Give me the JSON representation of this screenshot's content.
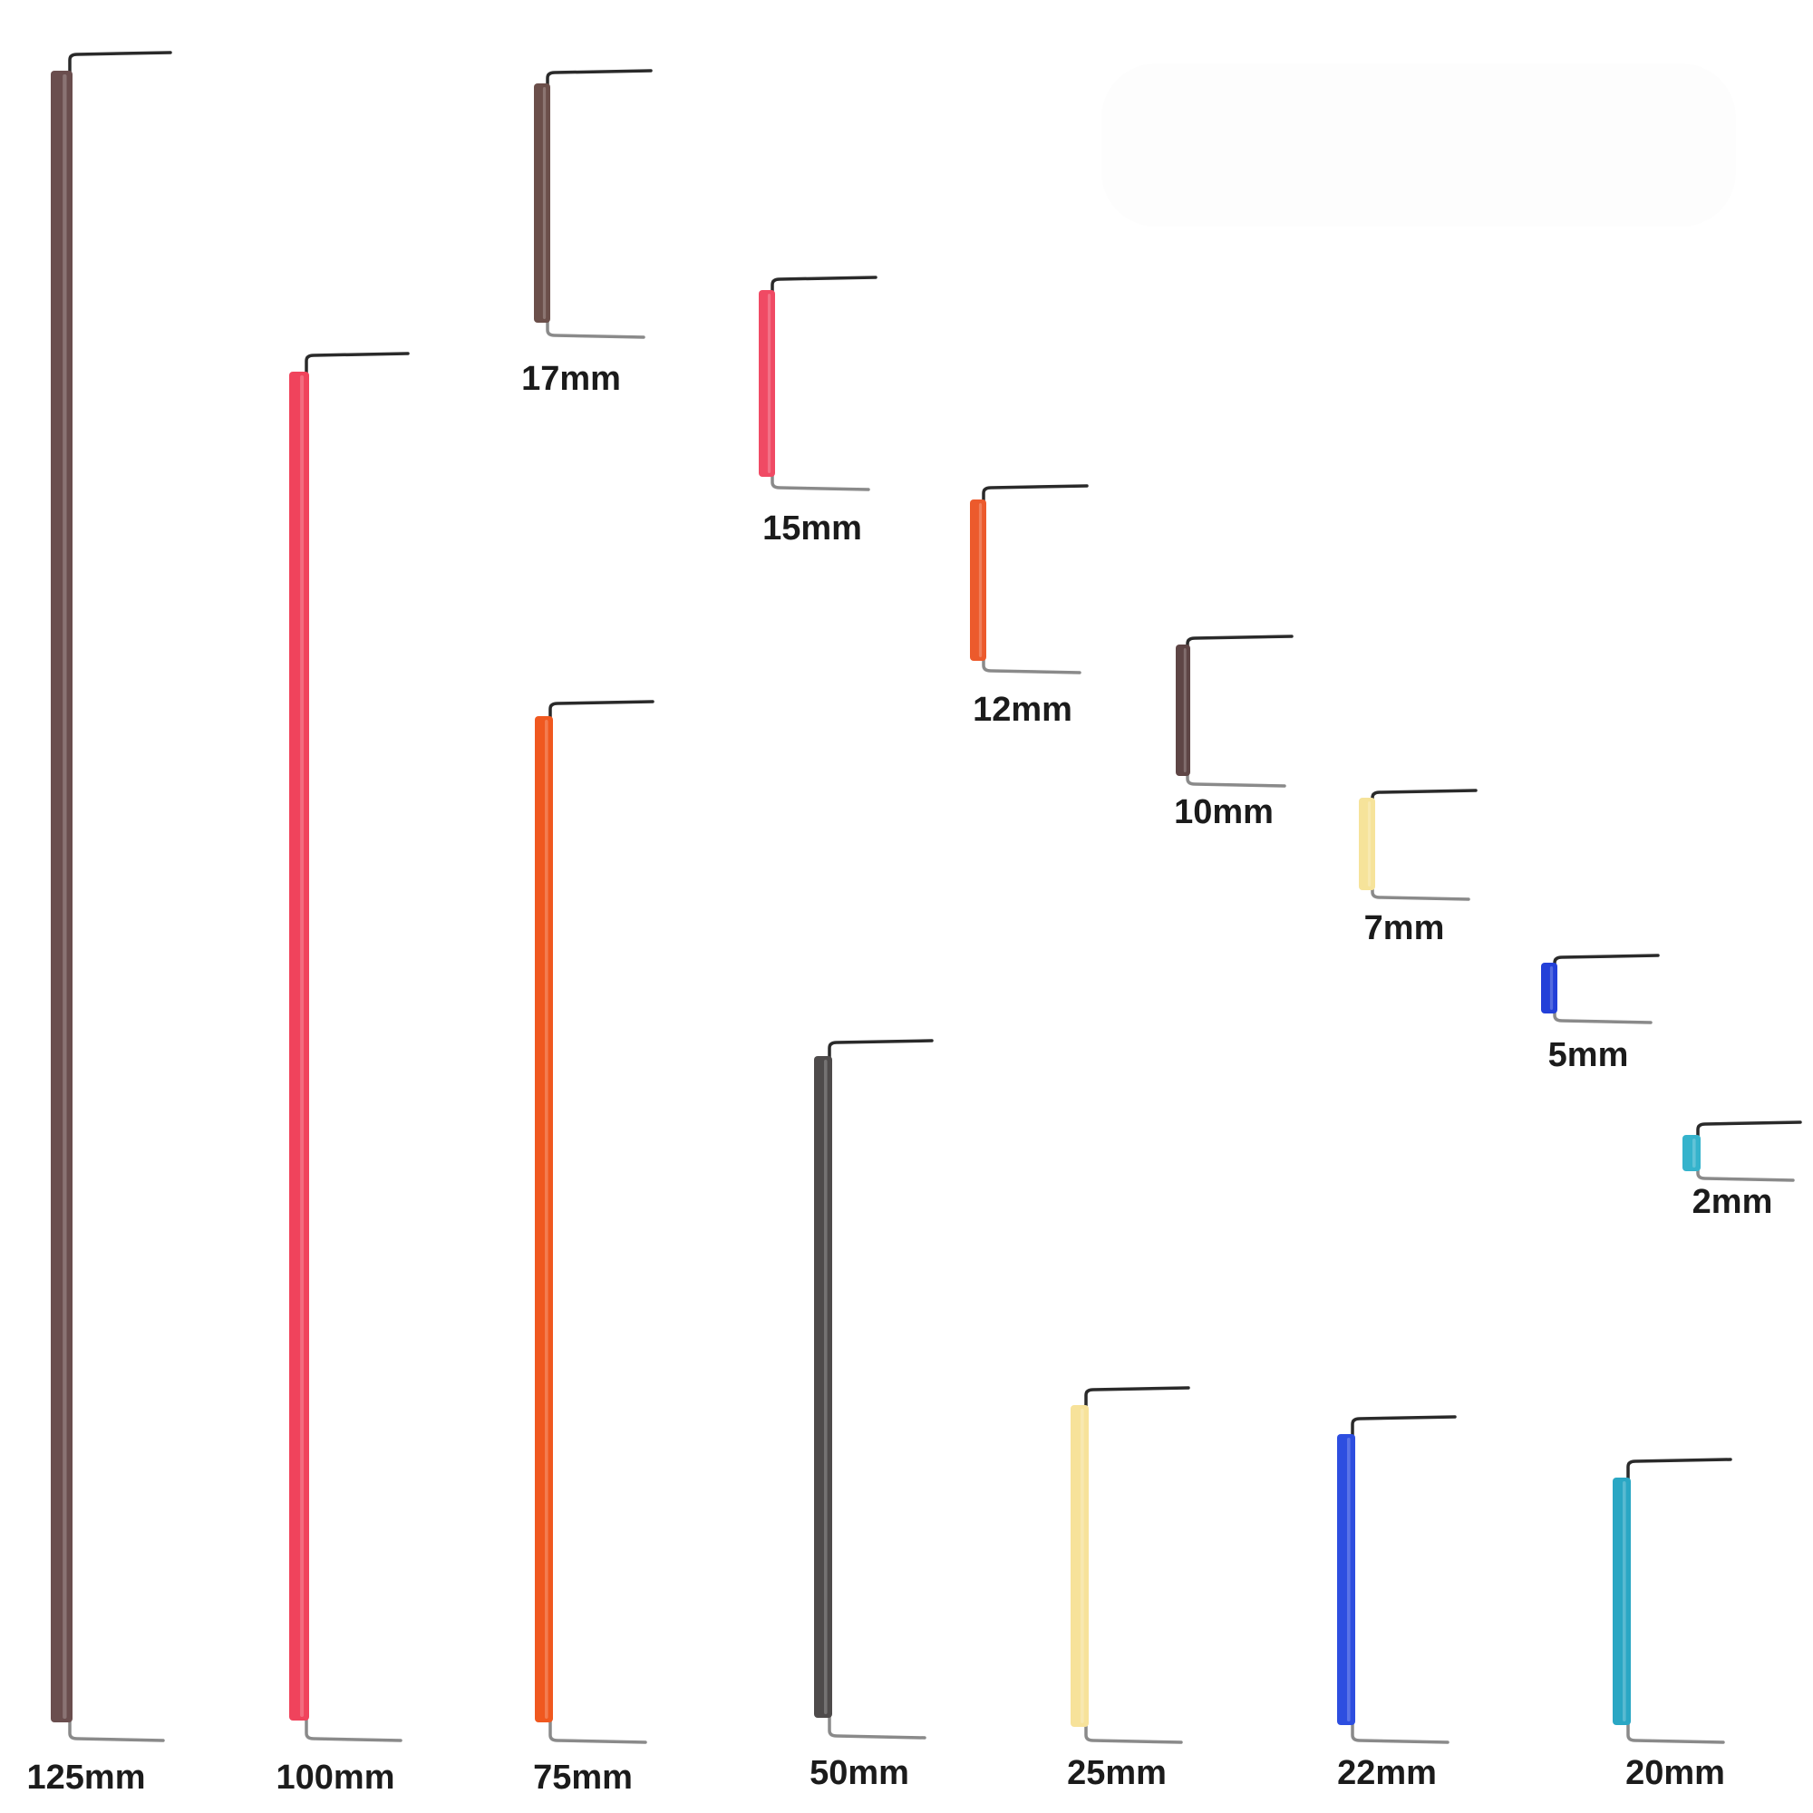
{
  "wires": [
    {
      "label": "125mm",
      "color": "#6a4e4e"
    },
    {
      "label": "100mm",
      "color": "#f0435c"
    },
    {
      "label": "75mm",
      "color": "#f0581f"
    },
    {
      "label": "50mm",
      "color": "#4e4b4b"
    },
    {
      "label": "25mm",
      "color": "#f7e29a"
    },
    {
      "label": "22mm",
      "color": "#2d4ee0"
    },
    {
      "label": "20mm",
      "color": "#2aa7c4"
    },
    {
      "label": "17mm",
      "color": "#6b4f4a"
    },
    {
      "label": "15mm",
      "color": "#f04a64"
    },
    {
      "label": "12mm",
      "color": "#ec5a2c"
    },
    {
      "label": "10mm",
      "color": "#5e4545"
    },
    {
      "label": "7mm",
      "color": "#f6e39a"
    },
    {
      "label": "5mm",
      "color": "#2340d8"
    },
    {
      "label": "2mm",
      "color": "#35b3cc"
    }
  ]
}
